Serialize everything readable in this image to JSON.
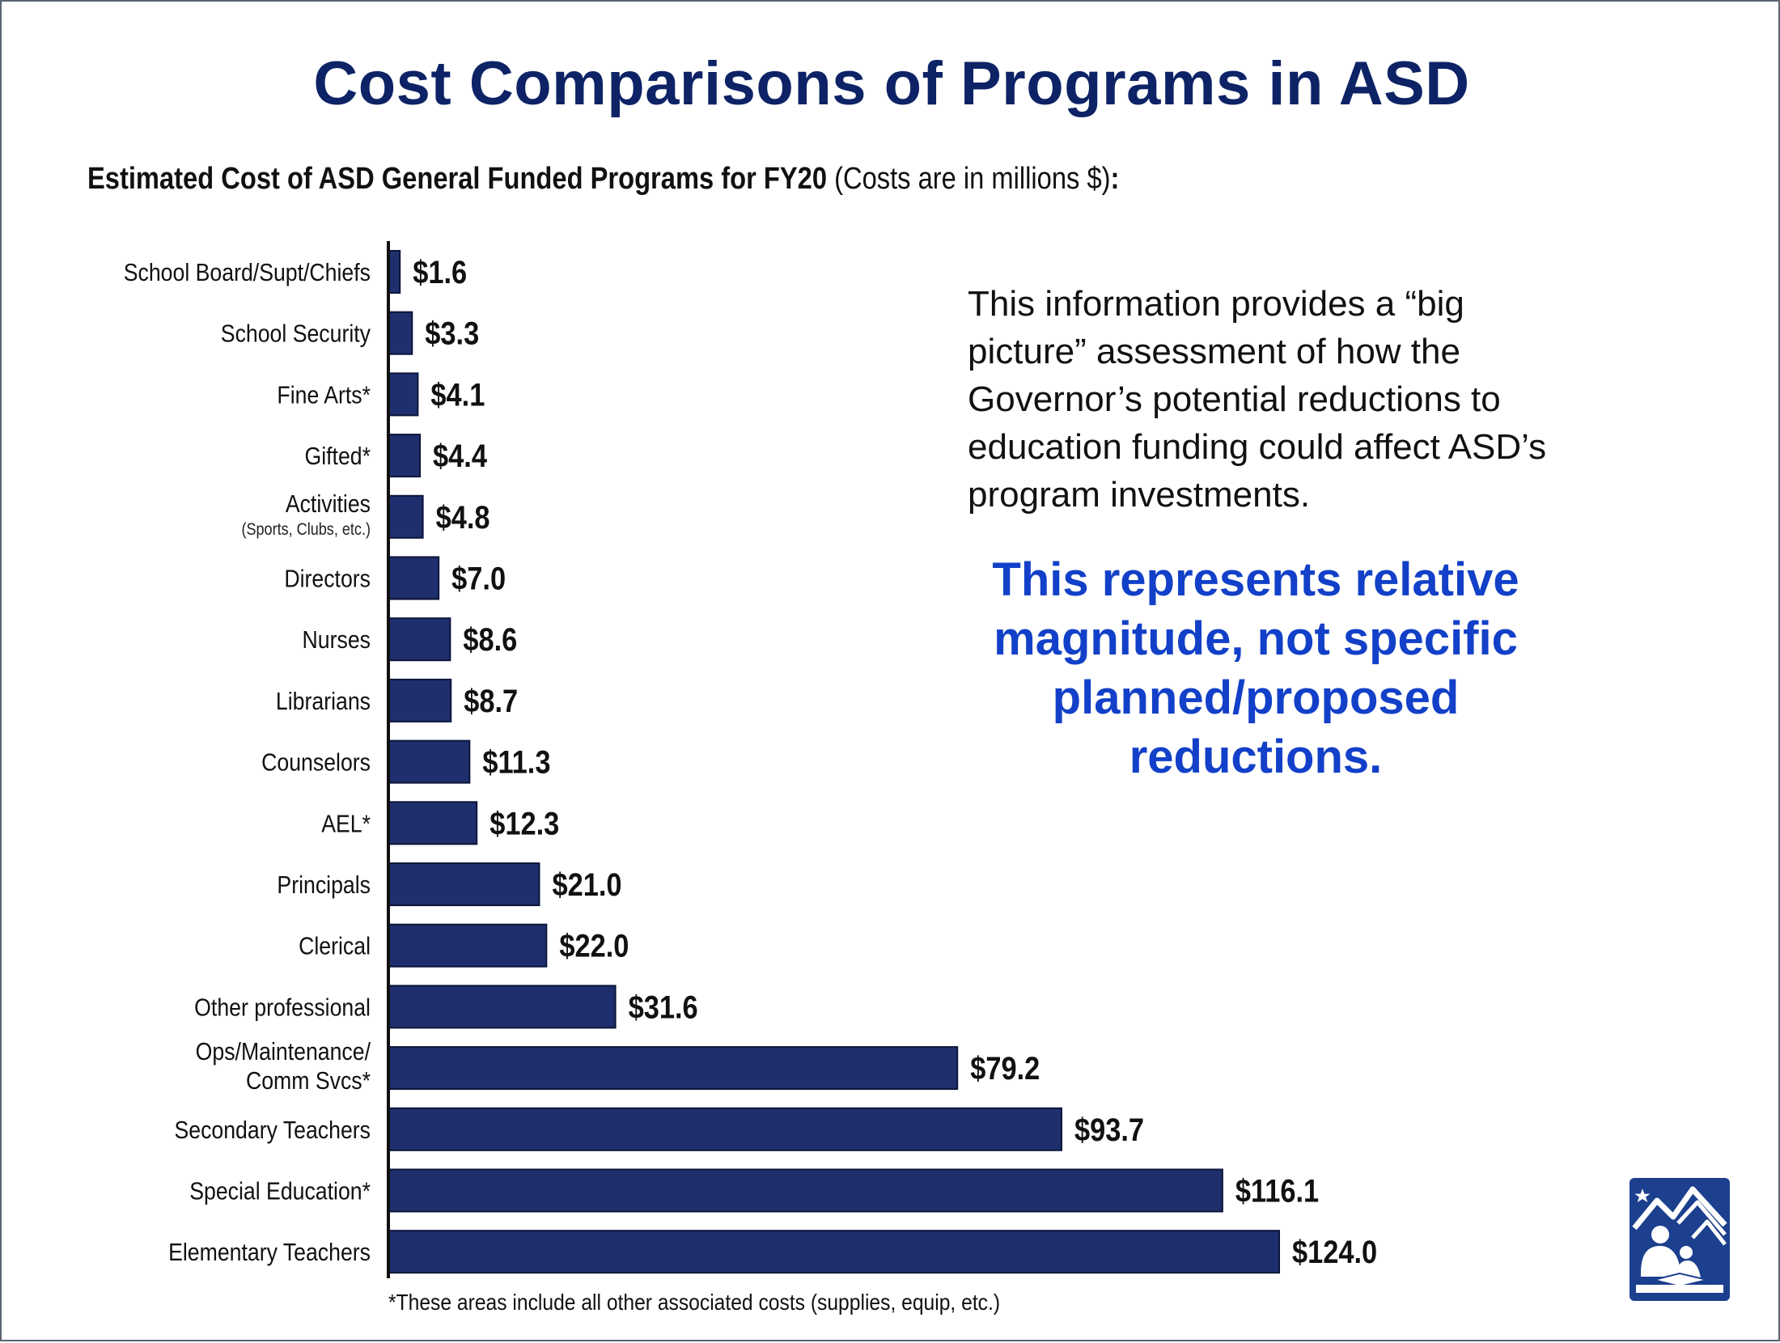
{
  "slide": {
    "title": "Cost Comparisons of Programs in ASD",
    "subtitle_bold": "Estimated Cost of ASD General Funded Programs for FY20",
    "subtitle_rest": " (Costs are in millions $)",
    "subtitle_colon": ":",
    "info_text": "This information provides a “big picture” assessment of how the Governor’s potential reductions to education funding could affect ASD’s program investments.",
    "emphasis_text": "This represents relative magnitude, not specific planned/proposed reductions.",
    "footnote": "*These areas include all other associated costs (supplies, equip, etc.)"
  },
  "colors": {
    "title": "#0d2366",
    "bar": "#1f2f6e",
    "emphasis": "#1240c8",
    "logo": "#1c3f8e"
  },
  "chart_data": {
    "type": "bar",
    "orientation": "horizontal",
    "title": "Estimated Cost of ASD General Funded Programs for FY20",
    "unit": "millions $",
    "categories": [
      {
        "label": "School Board/Supt/Chiefs",
        "sublabel": ""
      },
      {
        "label": "School Security",
        "sublabel": ""
      },
      {
        "label": "Fine Arts*",
        "sublabel": ""
      },
      {
        "label": "Gifted*",
        "sublabel": ""
      },
      {
        "label": "Activities",
        "sublabel": "(Sports, Clubs, etc.)"
      },
      {
        "label": "Directors",
        "sublabel": ""
      },
      {
        "label": "Nurses",
        "sublabel": ""
      },
      {
        "label": "Librarians",
        "sublabel": ""
      },
      {
        "label": "Counselors",
        "sublabel": ""
      },
      {
        "label": "AEL*",
        "sublabel": ""
      },
      {
        "label": "Principals",
        "sublabel": ""
      },
      {
        "label": "Clerical",
        "sublabel": ""
      },
      {
        "label": "Other professional",
        "sublabel": ""
      },
      {
        "label": "Ops/Maintenance/",
        "sublabel": "Comm Svcs*"
      },
      {
        "label": "Secondary Teachers",
        "sublabel": ""
      },
      {
        "label": "Special Education*",
        "sublabel": ""
      },
      {
        "label": "Elementary Teachers",
        "sublabel": ""
      }
    ],
    "values": [
      1.6,
      3.3,
      4.1,
      4.4,
      4.8,
      7.0,
      8.6,
      8.7,
      11.3,
      12.3,
      21.0,
      22.0,
      31.6,
      79.2,
      93.7,
      116.1,
      124.0
    ],
    "value_labels": [
      "$1.6",
      "$3.3",
      "$4.1",
      "$4.4",
      "$4.8",
      "$7.0",
      "$8.6",
      "$8.7",
      "$11.3",
      "$12.3",
      "$21.0",
      "$22.0",
      "$31.6",
      "$79.2",
      "$93.7",
      "$116.1",
      "$124.0"
    ],
    "xlim": [
      0,
      124
    ],
    "grid": false,
    "legend": "none"
  }
}
